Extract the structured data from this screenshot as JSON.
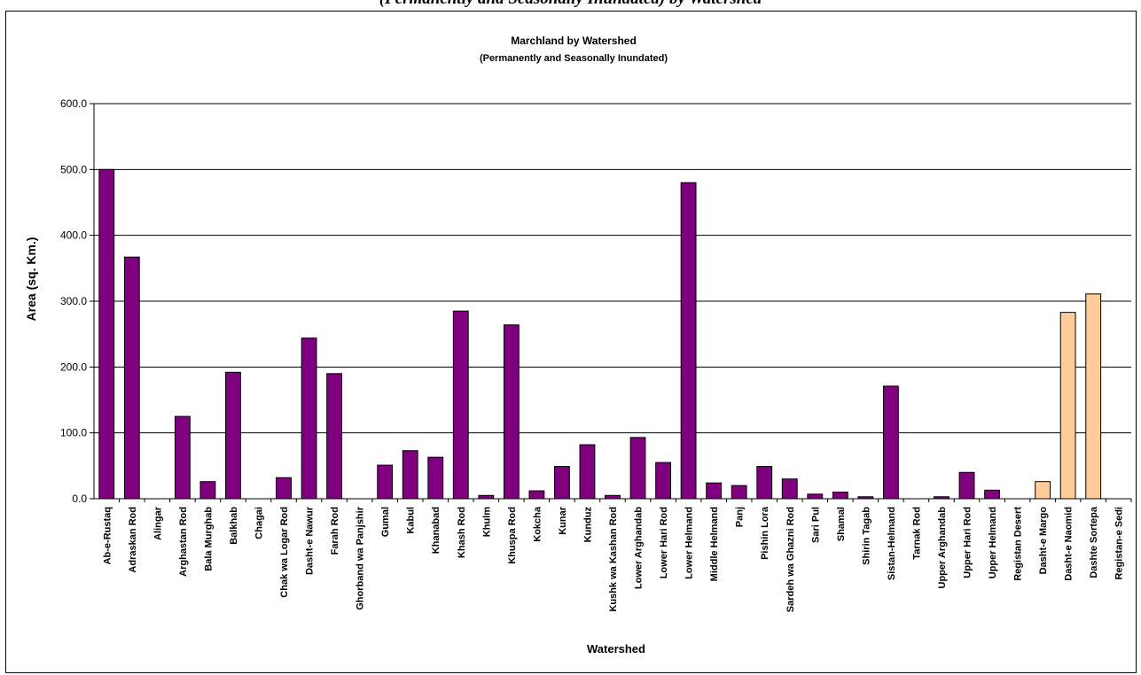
{
  "page_top_text": "(Permanently and Seasonally Inundated) by Watershed",
  "chart_data": {
    "type": "bar",
    "title": "Marchland by Watershed",
    "subtitle": "(Permanently and Seasonally Inundated)",
    "xlabel": "Watershed",
    "ylabel": "Area (sq. Km.)",
    "ylim": [
      0,
      600
    ],
    "yticks": [
      "0.0",
      "100.0",
      "200.0",
      "300.0",
      "400.0",
      "500.0",
      "600.0"
    ],
    "grid": true,
    "legend": "none",
    "colors": {
      "primary": "#800080",
      "highlight": "#FFCC99"
    },
    "categories": [
      "Ab-e-Rustaq",
      "Adraskan Rod",
      "Alingar",
      "Arghastan Rod",
      "Bala Murghab",
      "Balkhab",
      "Chagai",
      "Chak wa Logar Rod",
      "Dasht-e Nawur",
      "Farah Rod",
      "Ghorband wa Panjshir",
      "Gumal",
      "Kabul",
      "Khanabad",
      "Khash Rod",
      "Khulm",
      "Khuspa Rod",
      "Kokcha",
      "Kunar",
      "Kunduz",
      "Kushk wa Kashan Rod",
      "Lower Arghandab",
      "Lower Hari Rod",
      "Lower Helmand",
      "Middle Helmand",
      "Panj",
      "Pishin Lora",
      "Sardeh wa Ghazni Rod",
      "Sari Pul",
      "Shamal",
      "Shirin Tagab",
      "Sistan-Helmand",
      "Tarnak Rod",
      "Upper Arghandab",
      "Upper Hari Rod",
      "Upper Helmand",
      "Registan Desert",
      "Dasht-e Margo",
      "Dasht-e Naomid",
      "Dashte Sortepa",
      "Registan-e Sedi"
    ],
    "values": [
      500,
      367,
      0,
      125,
      26,
      192,
      0,
      32,
      244,
      190,
      0,
      51,
      73,
      63,
      285,
      5,
      264,
      12,
      49,
      82,
      5,
      93,
      55,
      480,
      24,
      20,
      49,
      30,
      7,
      10,
      3,
      171,
      0,
      3,
      40,
      13,
      0,
      26,
      283,
      311,
      0
    ],
    "bar_colors": [
      "primary",
      "primary",
      "primary",
      "primary",
      "primary",
      "primary",
      "primary",
      "primary",
      "primary",
      "primary",
      "primary",
      "primary",
      "primary",
      "primary",
      "primary",
      "primary",
      "primary",
      "primary",
      "primary",
      "primary",
      "primary",
      "primary",
      "primary",
      "primary",
      "primary",
      "primary",
      "primary",
      "primary",
      "primary",
      "primary",
      "primary",
      "primary",
      "primary",
      "primary",
      "primary",
      "primary",
      "primary",
      "highlight",
      "highlight",
      "highlight",
      "highlight"
    ]
  }
}
